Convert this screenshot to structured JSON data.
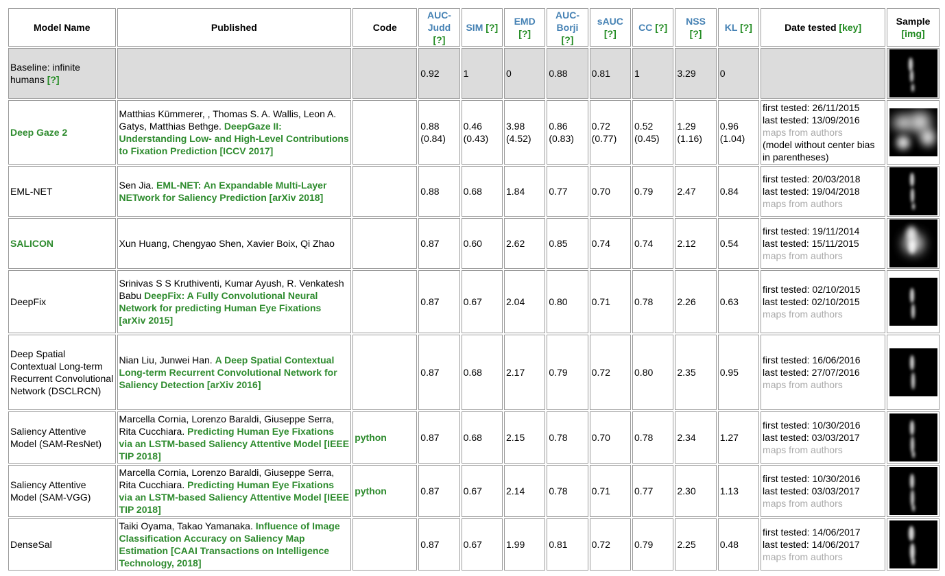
{
  "headers": {
    "model_name": "Model Name",
    "published": "Published",
    "code": "Code",
    "auc_judd": "AUC-Judd",
    "sim": "SIM",
    "emd": "EMD",
    "auc_borji": "AUC-Borji",
    "sauc": "sAUC",
    "cc": "CC",
    "nss": "NSS",
    "kl": "KL",
    "date_tested": "Date tested",
    "key_link": "[key]",
    "sample": "Sample",
    "img_link": "[img]",
    "help_link": "[?]"
  },
  "rows": [
    {
      "name": "Baseline: infinite humans",
      "name_link": "[?]",
      "authors": "",
      "title_link": "",
      "code": "",
      "auc_judd": "0.92",
      "sim": "1",
      "emd": "0",
      "auc_borji": "0.88",
      "sauc": "0.81",
      "cc": "1",
      "nss": "3.29",
      "kl": "0",
      "first_tested": "",
      "last_tested": "",
      "maps": "",
      "note": ""
    },
    {
      "name": "Deep Gaze 2",
      "authors": "Matthias Kümmerer, , Thomas S. A. Wallis, Leon A. Gatys, Matthias Bethge.",
      "title_link": "DeepGaze II: Understanding Low- and High-Level Contributions to Fixation Prediction [ICCV 2017]",
      "code": "",
      "auc_judd": "0.88 (0.84)",
      "sim": "0.46 (0.43)",
      "emd": "3.98 (4.52)",
      "auc_borji": "0.86 (0.83)",
      "sauc": "0.72 (0.77)",
      "cc": "0.52 (0.45)",
      "nss": "1.29 (1.16)",
      "kl": "0.96 (1.04)",
      "first_tested": "first tested: 26/11/2015",
      "last_tested": "last tested: 13/09/2016",
      "maps": "maps from authors",
      "note": "(model without center bias in parentheses)"
    },
    {
      "name": "EML-NET",
      "authors": "Sen Jia.",
      "title_link": "EML-NET: An Expandable Multi-Layer NETwork for Saliency Prediction [arXiv 2018]",
      "code": "",
      "auc_judd": "0.88",
      "sim": "0.68",
      "emd": "1.84",
      "auc_borji": "0.77",
      "sauc": "0.70",
      "cc": "0.79",
      "nss": "2.47",
      "kl": "0.84",
      "first_tested": "first tested: 20/03/2018",
      "last_tested": "last tested: 19/04/2018",
      "maps": "maps from authors",
      "note": ""
    },
    {
      "name": "SALICON",
      "authors": "Xun Huang, Chengyao Shen, Xavier Boix, Qi Zhao",
      "title_link": "",
      "code": "",
      "auc_judd": "0.87",
      "sim": "0.60",
      "emd": "2.62",
      "auc_borji": "0.85",
      "sauc": "0.74",
      "cc": "0.74",
      "nss": "2.12",
      "kl": "0.54",
      "first_tested": "first tested: 19/11/2014",
      "last_tested": "last tested: 15/11/2015",
      "maps": "maps from authors",
      "note": ""
    },
    {
      "name": "DeepFix",
      "authors": "Srinivas S S Kruthiventi, Kumar Ayush, R. Venkatesh Babu",
      "title_link": "DeepFix: A Fully Convolutional Neural Network for predicting Human Eye Fixations [arXiv 2015]",
      "code": "",
      "auc_judd": "0.87",
      "sim": "0.67",
      "emd": "2.04",
      "auc_borji": "0.80",
      "sauc": "0.71",
      "cc": "0.78",
      "nss": "2.26",
      "kl": "0.63",
      "first_tested": "first tested: 02/10/2015",
      "last_tested": "last tested: 02/10/2015",
      "maps": "maps from authors",
      "note": ""
    },
    {
      "name": "Deep Spatial Contextual Long-term Recurrent Convolutional Network (DSCLRCN)",
      "authors": "Nian Liu, Junwei Han.",
      "title_link": "A Deep Spatial Contextual Long-term Recurrent Convolutional Network for Saliency Detection [arXiv 2016]",
      "code": "",
      "auc_judd": "0.87",
      "sim": "0.68",
      "emd": "2.17",
      "auc_borji": "0.79",
      "sauc": "0.72",
      "cc": "0.80",
      "nss": "2.35",
      "kl": "0.95",
      "first_tested": "first tested: 16/06/2016",
      "last_tested": "last tested: 27/07/2016",
      "maps": "maps from authors",
      "note": ""
    },
    {
      "name": "Saliency Attentive Model (SAM-ResNet)",
      "authors": "Marcella Cornia, Lorenzo Baraldi, Giuseppe Serra, Rita Cucchiara.",
      "title_link": "Predicting Human Eye Fixations via an LSTM-based Saliency Attentive Model [IEEE TIP 2018]",
      "code": "python",
      "auc_judd": "0.87",
      "sim": "0.68",
      "emd": "2.15",
      "auc_borji": "0.78",
      "sauc": "0.70",
      "cc": "0.78",
      "nss": "2.34",
      "kl": "1.27",
      "first_tested": "first tested: 10/30/2016",
      "last_tested": "last tested: 03/03/2017",
      "maps": "maps from authors",
      "note": ""
    },
    {
      "name": "Saliency Attentive Model (SAM-VGG)",
      "authors": "Marcella Cornia, Lorenzo Baraldi, Giuseppe Serra, Rita Cucchiara.",
      "title_link": "Predicting Human Eye Fixations via an LSTM-based Saliency Attentive Model [IEEE TIP 2018]",
      "code": "python",
      "auc_judd": "0.87",
      "sim": "0.67",
      "emd": "2.14",
      "auc_borji": "0.78",
      "sauc": "0.71",
      "cc": "0.77",
      "nss": "2.30",
      "kl": "1.13",
      "first_tested": "first tested: 10/30/2016",
      "last_tested": "last tested: 03/03/2017",
      "maps": "maps from authors",
      "note": ""
    },
    {
      "name": "DenseSal",
      "authors": "Taiki Oyama, Takao Yamanaka.",
      "title_link": "Influence of Image Classification Accuracy on Saliency Map Estimation [CAAI Transactions on Intelligence Technology, 2018]",
      "code": "",
      "auc_judd": "0.87",
      "sim": "0.67",
      "emd": "1.99",
      "auc_borji": "0.81",
      "sauc": "0.72",
      "cc": "0.79",
      "nss": "2.25",
      "kl": "0.48",
      "first_tested": "first tested: 14/06/2017",
      "last_tested": "last tested: 14/06/2017",
      "maps": "maps from authors",
      "note": ""
    }
  ],
  "colors": {
    "metric_header": "#4682b4",
    "link_green": "#2e8b2e",
    "baseline_bg": "#dcdcdc",
    "muted_text": "#a9a9a9"
  }
}
